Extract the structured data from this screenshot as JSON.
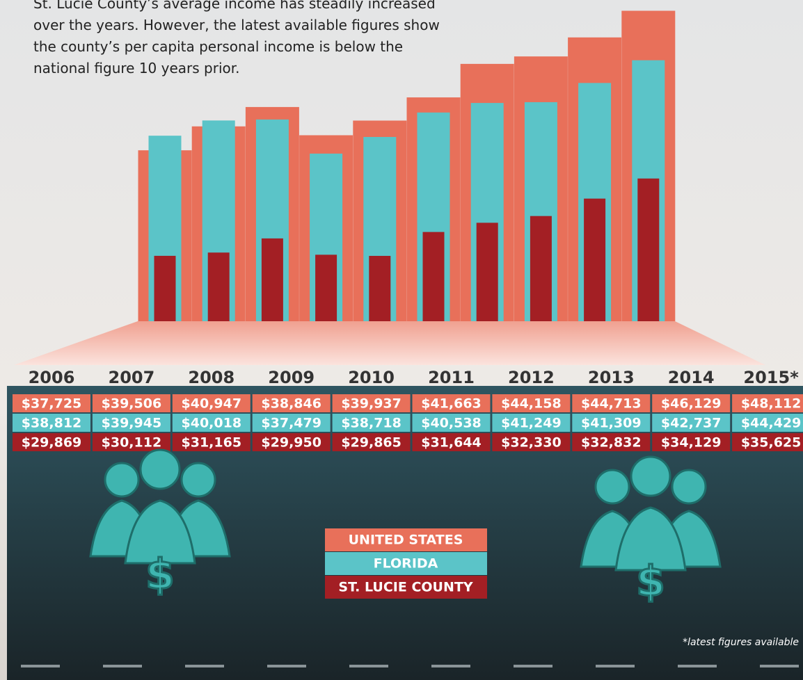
{
  "chart_data": {
    "type": "bar",
    "subtitle": "St. Lucie County’s average income has steadily increased over the years. However, the latest available figures show the county’s per capita personal income is below the national figure 10 years prior.",
    "note": "*latest figures available",
    "categories": [
      "2006",
      "2007",
      "2008",
      "2009",
      "2010",
      "2011",
      "2012",
      "2013",
      "2014",
      "2015*"
    ],
    "series": [
      {
        "name": "UNITED STATES",
        "color": "#e8705a",
        "values": [
          37725,
          39506,
          40947,
          38846,
          39937,
          41663,
          44158,
          44713,
          46129,
          48112
        ],
        "value_labels": [
          "$37,725",
          "$39,506",
          "$40,947",
          "$38,846",
          "$39,937",
          "$41,663",
          "$44,158",
          "$44,713",
          "$46,129",
          "$48,112"
        ]
      },
      {
        "name": "FLORIDA",
        "color": "#5bc4c8",
        "values": [
          38812,
          39945,
          40018,
          37479,
          38718,
          40538,
          41249,
          41309,
          42737,
          44429
        ],
        "value_labels": [
          "$38,812",
          "$39,945",
          "$40,018",
          "$37,479",
          "$38,718",
          "$40,538",
          "$41,249",
          "$41,309",
          "$42,737",
          "$44,429"
        ]
      },
      {
        "name": "ST. LUCIE COUNTY",
        "color": "#a31f24",
        "values": [
          29869,
          30112,
          31165,
          29950,
          29865,
          31644,
          32330,
          32832,
          34129,
          35625
        ],
        "value_labels": [
          "$29,869",
          "$30,112",
          "$31,165",
          "$29,950",
          "$29,865",
          "$31,644",
          "$32,330",
          "$32,832",
          "$34,129",
          "$35,625"
        ]
      }
    ],
    "ylim": [
      25000,
      48500
    ]
  }
}
